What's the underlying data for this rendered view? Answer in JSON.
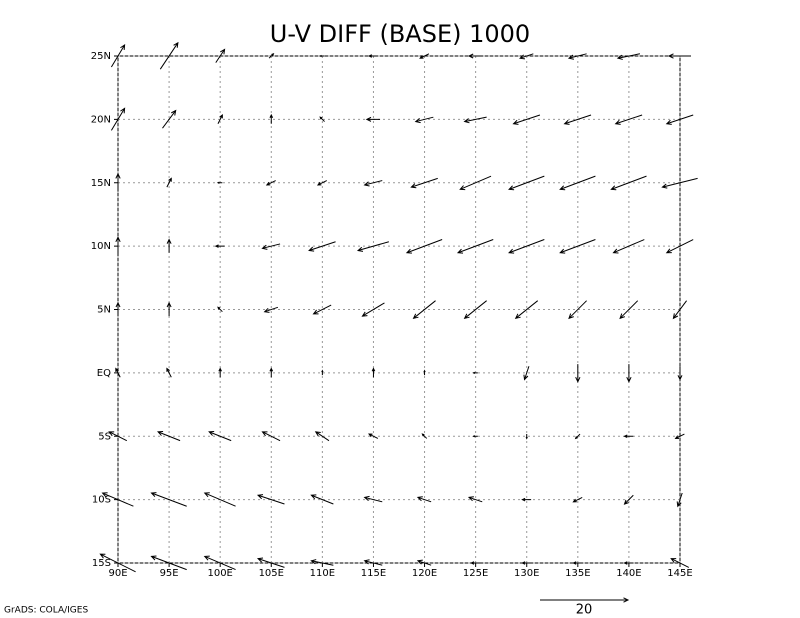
{
  "chart_data": {
    "type": "vector",
    "title": "U-V DIFF (BASE) 1000",
    "footer": "GrADS: COLA/IGES",
    "ref_vector": 20,
    "xlim": [
      90,
      145
    ],
    "ylim": [
      -15,
      25
    ],
    "xticks": [
      {
        "value": 90,
        "label": "90E"
      },
      {
        "value": 95,
        "label": "95E"
      },
      {
        "value": 100,
        "label": "100E"
      },
      {
        "value": 105,
        "label": "105E"
      },
      {
        "value": 110,
        "label": "110E"
      },
      {
        "value": 115,
        "label": "115E"
      },
      {
        "value": 120,
        "label": "120E"
      },
      {
        "value": 125,
        "label": "125E"
      },
      {
        "value": 130,
        "label": "130E"
      },
      {
        "value": 135,
        "label": "135E"
      },
      {
        "value": 140,
        "label": "140E"
      },
      {
        "value": 145,
        "label": "145E"
      }
    ],
    "yticks": [
      {
        "value": -15,
        "label": "15S"
      },
      {
        "value": -10,
        "label": "10S"
      },
      {
        "value": -5,
        "label": "5S"
      },
      {
        "value": 0,
        "label": "EQ"
      },
      {
        "value": 5,
        "label": "5N"
      },
      {
        "value": 10,
        "label": "10N"
      },
      {
        "value": 15,
        "label": "15N"
      },
      {
        "value": 20,
        "label": "20N"
      },
      {
        "value": 25,
        "label": "25N"
      }
    ],
    "grid": true,
    "color": "#000000",
    "lons": [
      90,
      95,
      100,
      105,
      110,
      115,
      120,
      125,
      130,
      135,
      140,
      145
    ],
    "lats": [
      25,
      20,
      15,
      10,
      5,
      0,
      -5,
      -10,
      -15
    ],
    "u": [
      [
        3,
        4,
        2,
        1,
        -1,
        -2,
        -2,
        -3,
        -3,
        -4,
        -5,
        -5
      ],
      [
        3,
        3,
        1,
        0,
        -1,
        -3,
        -4,
        -5,
        -6,
        -6,
        -6,
        -6
      ],
      [
        0,
        1,
        -1,
        -2,
        -2,
        -4,
        -6,
        -7,
        -8,
        -8,
        -8,
        -8
      ],
      [
        0,
        0,
        -2,
        -4,
        -6,
        -7,
        -8,
        -8,
        -8,
        -8,
        -7,
        -6
      ],
      [
        0,
        0,
        -1,
        -3,
        -4,
        -5,
        -5,
        -5,
        -5,
        -4,
        -4,
        -3
      ],
      [
        -1,
        -1,
        0,
        0,
        0,
        0,
        0,
        -1,
        -1,
        0,
        0,
        0
      ],
      [
        -4,
        -5,
        -5,
        -4,
        -3,
        -2,
        -1,
        -1,
        0,
        -1,
        -2,
        -2
      ],
      [
        -7,
        -8,
        -7,
        -6,
        -5,
        -4,
        -3,
        -3,
        -2,
        -2,
        -2,
        -1
      ],
      [
        -8,
        -8,
        -7,
        -6,
        -5,
        -4,
        -3,
        -2,
        -2,
        -2,
        -2,
        -4
      ]
    ],
    "v": [
      [
        5,
        6,
        3,
        1,
        0,
        0,
        -1,
        0,
        -1,
        -1,
        -1,
        0
      ],
      [
        5,
        4,
        2,
        2,
        1,
        0,
        -1,
        -1,
        -2,
        -2,
        -2,
        -2
      ],
      [
        4,
        2,
        0,
        -1,
        -1,
        -1,
        -2,
        -3,
        -3,
        -3,
        -3,
        -2
      ],
      [
        4,
        3,
        0,
        -1,
        -2,
        -2,
        -3,
        -3,
        -3,
        -3,
        -3,
        -3
      ],
      [
        3,
        3,
        1,
        -1,
        -2,
        -3,
        -4,
        -4,
        -4,
        -4,
        -4,
        -4
      ],
      [
        2,
        2,
        2,
        2,
        1,
        2,
        1,
        0,
        -3,
        -4,
        -4,
        -3
      ],
      [
        2,
        2,
        2,
        2,
        2,
        1,
        1,
        0,
        -1,
        -1,
        0,
        -1
      ],
      [
        3,
        3,
        3,
        2,
        2,
        1,
        1,
        1,
        0,
        -1,
        -2,
        -3
      ],
      [
        4,
        3,
        3,
        2,
        1,
        1,
        1,
        0,
        0,
        0,
        0,
        2
      ]
    ]
  }
}
